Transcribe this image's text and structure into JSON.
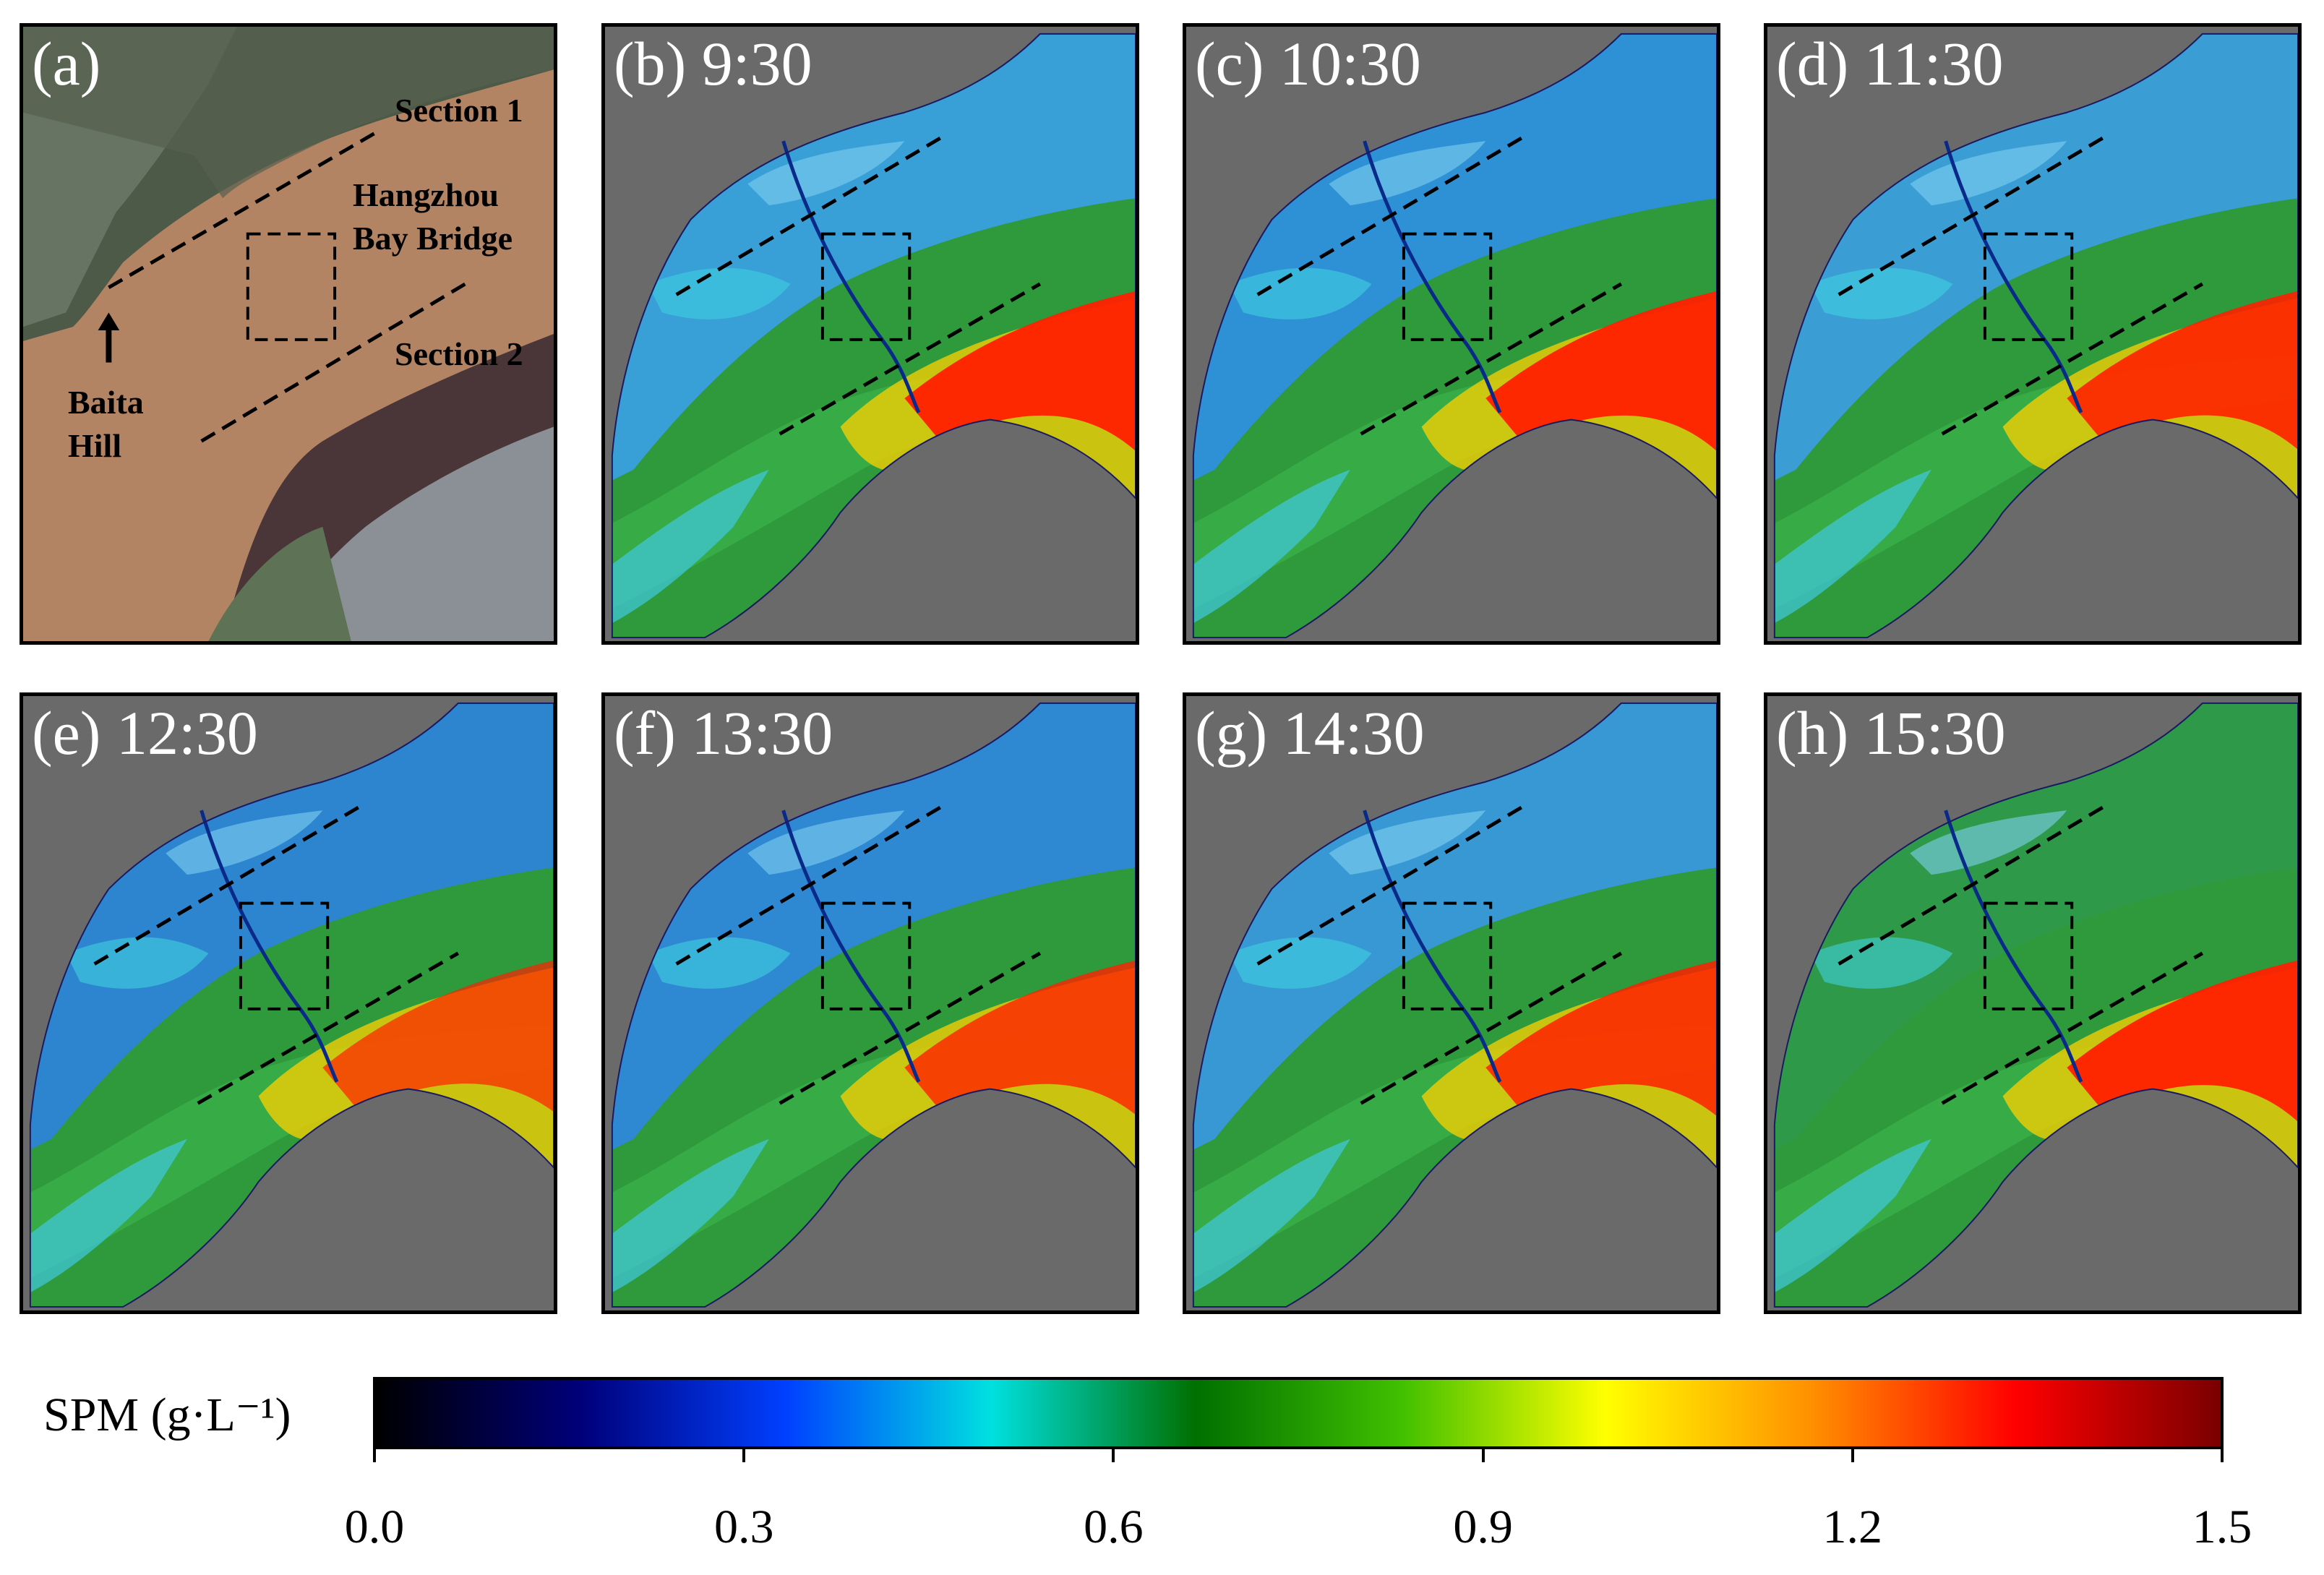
{
  "panels": [
    {
      "label": "(a)",
      "kind": "rgb"
    },
    {
      "label": "(b) 9:30",
      "kind": "spm",
      "variant": "b"
    },
    {
      "label": "(c) 10:30",
      "kind": "spm",
      "variant": "c"
    },
    {
      "label": "(d) 11:30",
      "kind": "spm",
      "variant": "d"
    },
    {
      "label": "(e) 12:30",
      "kind": "spm",
      "variant": "e"
    },
    {
      "label": "(f) 13:30",
      "kind": "spm",
      "variant": "f"
    },
    {
      "label": "(g) 14:30",
      "kind": "spm",
      "variant": "g"
    },
    {
      "label": "(h) 15:30",
      "kind": "spm",
      "variant": "h"
    }
  ],
  "annotations": {
    "section1": "Section 1",
    "section2": "Section 2",
    "bridge_line1": "Hangzhou",
    "bridge_line2": "Bay Bridge",
    "hill_line1": "Baita",
    "hill_line2": "Hill",
    "arrow_icon": "up-arrow-icon"
  },
  "colorbar": {
    "title": "SPM (g·L⁻¹)",
    "min": 0.0,
    "max": 1.5,
    "ticks": [
      "0.0",
      "0.3",
      "0.6",
      "0.9",
      "1.2",
      "1.5"
    ],
    "colors": [
      "#000000",
      "#00007a",
      "#0040ff",
      "#00e0e0",
      "#007000",
      "#40c000",
      "#ffff00",
      "#ff9000",
      "#ff0000",
      "#7a0000"
    ]
  }
}
